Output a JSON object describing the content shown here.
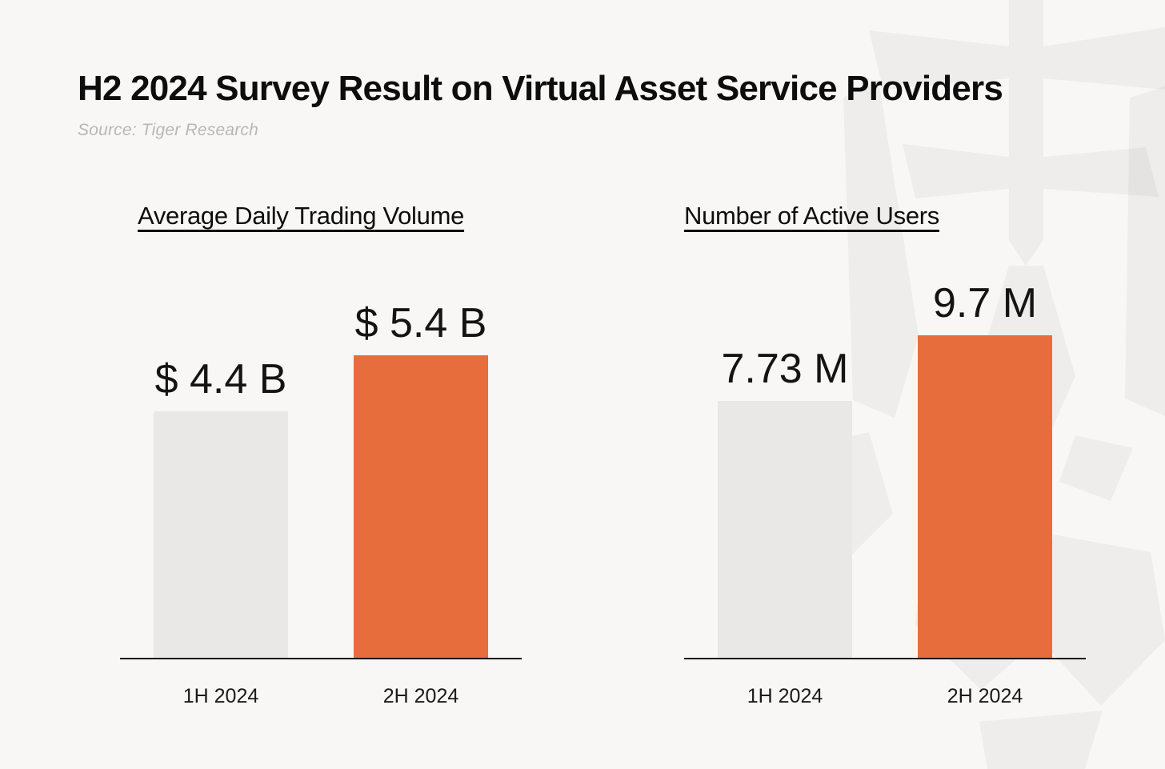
{
  "header": {
    "title": "H2 2024 Survey Result on Virtual Asset Service Providers",
    "source": "Source: Tiger Research"
  },
  "colors": {
    "background": "#F8F7F5",
    "bar_1h": "#E9E8E7",
    "bar_2h": "#E76E3C",
    "axis": "#141414",
    "title_text": "#0D0D0D",
    "source_text": "#B9B7B4",
    "watermark": "#1A1A1A"
  },
  "watermark_icon": "tiger-research-logo",
  "chart_data": [
    {
      "type": "bar",
      "title": "Average Daily Trading Volume",
      "categories": [
        "1H 2024",
        "2H 2024"
      ],
      "values": [
        4.4,
        5.4
      ],
      "value_labels": [
        "$ 4.4 B",
        "$ 5.4 B"
      ],
      "bar_colors": [
        "#E9E8E7",
        "#E76E3C"
      ],
      "ylim": [
        0,
        5.4
      ],
      "grid": false,
      "legend": "none"
    },
    {
      "type": "bar",
      "title": "Number of Active Users",
      "categories": [
        "1H 2024",
        "2H 2024"
      ],
      "values": [
        7.73,
        9.7
      ],
      "value_labels": [
        "7.73 M",
        "9.7 M"
      ],
      "bar_colors": [
        "#E9E8E7",
        "#E76E3C"
      ],
      "ylim": [
        0,
        9.7
      ],
      "grid": false,
      "legend": "none"
    }
  ]
}
